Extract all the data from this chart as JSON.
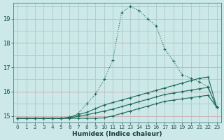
{
  "xlabel": "Humidex (Indice chaleur)",
  "bg_color": "#cce8e8",
  "grid_color_v": "#aacccc",
  "grid_color_h": "#ccaaaa",
  "line_color": "#1a6b5a",
  "xlim": [
    -0.5,
    23.5
  ],
  "ylim": [
    14.72,
    19.65
  ],
  "yticks": [
    15,
    16,
    17,
    18,
    19
  ],
  "xticks": [
    0,
    1,
    2,
    3,
    4,
    5,
    6,
    7,
    8,
    9,
    10,
    11,
    12,
    13,
    14,
    15,
    16,
    17,
    18,
    19,
    20,
    21,
    22,
    23
  ],
  "line1_x": [
    0,
    1,
    2,
    3,
    4,
    5,
    6,
    7,
    8,
    9,
    10,
    11,
    12,
    13,
    14,
    15,
    16,
    17,
    18,
    19,
    20,
    21,
    22,
    23
  ],
  "line1_y": [
    14.9,
    14.9,
    14.9,
    14.9,
    14.9,
    14.9,
    14.9,
    15.1,
    15.5,
    15.9,
    16.5,
    17.3,
    19.25,
    19.5,
    19.35,
    19.0,
    18.7,
    17.75,
    17.25,
    16.7,
    16.55,
    16.4,
    16.2,
    15.35
  ],
  "line2_x": [
    0,
    1,
    2,
    3,
    4,
    5,
    6,
    7,
    8,
    9,
    10,
    11,
    12,
    13,
    14,
    15,
    16,
    17,
    18,
    19,
    20,
    21,
    22,
    23
  ],
  "line2_y": [
    14.9,
    14.9,
    14.9,
    14.9,
    14.9,
    14.9,
    14.95,
    15.05,
    15.15,
    15.3,
    15.45,
    15.55,
    15.65,
    15.75,
    15.85,
    15.95,
    16.05,
    16.15,
    16.25,
    16.35,
    16.45,
    16.55,
    16.6,
    15.35
  ],
  "line3_x": [
    0,
    1,
    2,
    3,
    4,
    5,
    6,
    7,
    8,
    9,
    10,
    11,
    12,
    13,
    14,
    15,
    16,
    17,
    18,
    19,
    20,
    21,
    22,
    23
  ],
  "line3_y": [
    14.9,
    14.9,
    14.9,
    14.9,
    14.9,
    14.9,
    14.92,
    14.98,
    15.05,
    15.12,
    15.2,
    15.28,
    15.38,
    15.48,
    15.58,
    15.68,
    15.78,
    15.88,
    15.94,
    16.0,
    16.06,
    16.12,
    16.17,
    15.35
  ],
  "line4_x": [
    0,
    1,
    2,
    3,
    4,
    5,
    6,
    7,
    8,
    9,
    10,
    11,
    12,
    13,
    14,
    15,
    16,
    17,
    18,
    19,
    20,
    21,
    22,
    23
  ],
  "line4_y": [
    14.9,
    14.9,
    14.9,
    14.9,
    14.9,
    14.9,
    14.9,
    14.9,
    14.9,
    14.9,
    14.92,
    15.0,
    15.1,
    15.2,
    15.3,
    15.4,
    15.5,
    15.6,
    15.65,
    15.7,
    15.75,
    15.8,
    15.85,
    15.35
  ]
}
